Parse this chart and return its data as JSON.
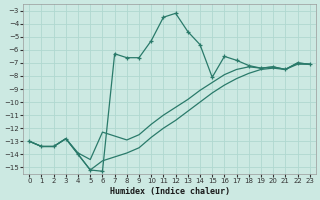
{
  "xlabel": "Humidex (Indice chaleur)",
  "xlim": [
    -0.5,
    23.5
  ],
  "ylim": [
    -15.5,
    -2.5
  ],
  "xticks": [
    0,
    1,
    2,
    3,
    4,
    5,
    6,
    7,
    8,
    9,
    10,
    11,
    12,
    13,
    14,
    15,
    16,
    17,
    18,
    19,
    20,
    21,
    22,
    23
  ],
  "yticks": [
    -15,
    -14,
    -13,
    -12,
    -11,
    -10,
    -9,
    -8,
    -7,
    -6,
    -5,
    -4,
    -3
  ],
  "bg_color": "#cce9e2",
  "grid_color": "#b0d8d0",
  "line_color": "#2a7a6a",
  "line1_x": [
    0,
    1,
    2,
    3,
    4,
    5,
    6,
    7,
    8,
    9,
    10,
    11,
    12,
    13,
    14,
    15,
    16,
    17,
    18,
    19,
    20,
    21,
    22,
    23
  ],
  "line1_y": [
    -13.0,
    -13.4,
    -13.4,
    -12.8,
    -14.0,
    -15.2,
    -15.3,
    -6.3,
    -6.6,
    -6.6,
    -5.3,
    -3.5,
    -3.2,
    -4.6,
    -5.6,
    -8.1,
    -6.5,
    -6.8,
    -7.2,
    -7.4,
    -7.3,
    -7.5,
    -7.0,
    -7.1
  ],
  "line2_x": [
    0,
    1,
    2,
    3,
    4,
    5,
    6,
    7,
    8,
    9,
    10,
    11,
    12,
    13,
    14,
    15,
    16,
    17,
    18,
    19,
    20,
    21,
    22,
    23
  ],
  "line2_y": [
    -13.0,
    -13.4,
    -13.4,
    -12.8,
    -13.9,
    -14.4,
    -12.3,
    -12.6,
    -12.9,
    -12.5,
    -11.7,
    -11.0,
    -10.4,
    -9.8,
    -9.1,
    -8.5,
    -7.9,
    -7.5,
    -7.3,
    -7.4,
    -7.3,
    -7.5,
    -7.0,
    -7.1
  ],
  "line3_x": [
    0,
    1,
    2,
    3,
    4,
    5,
    6,
    7,
    8,
    9,
    10,
    11,
    12,
    13,
    14,
    15,
    16,
    17,
    18,
    19,
    20,
    21,
    22,
    23
  ],
  "line3_y": [
    -13.0,
    -13.4,
    -13.4,
    -12.8,
    -14.0,
    -15.2,
    -14.5,
    -14.2,
    -13.9,
    -13.5,
    -12.7,
    -12.0,
    -11.4,
    -10.7,
    -10.0,
    -9.3,
    -8.7,
    -8.2,
    -7.8,
    -7.5,
    -7.4,
    -7.5,
    -7.1,
    -7.1
  ]
}
